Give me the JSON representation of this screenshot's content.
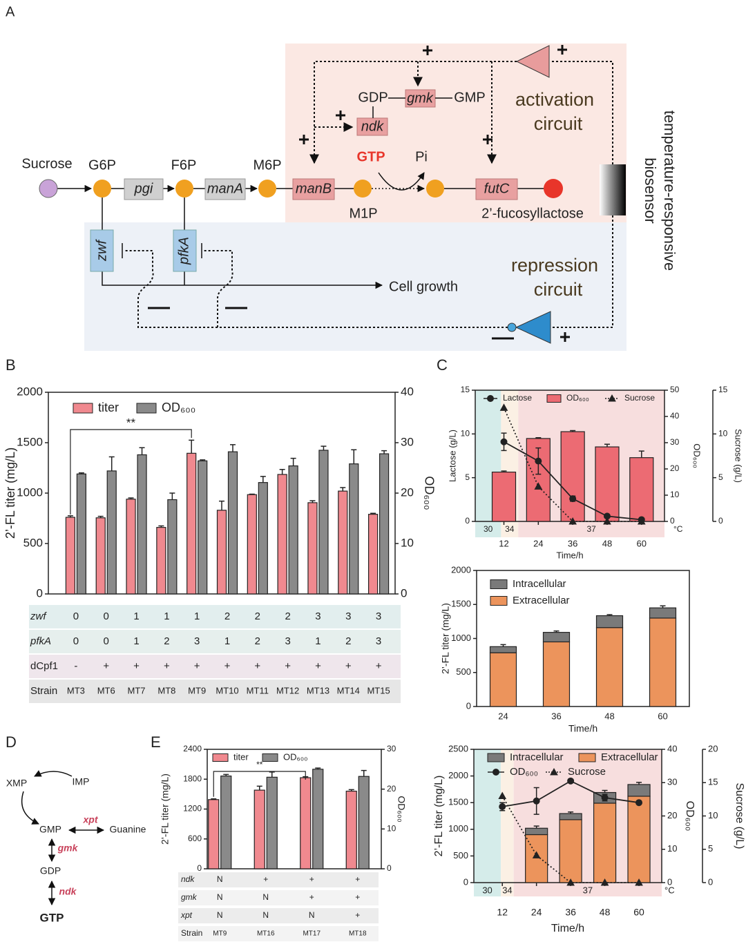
{
  "panel_labels": {
    "a": "A",
    "b": "B",
    "c": "C",
    "d": "D",
    "e": "E"
  },
  "diagram_a": {
    "sucrose": "Sucrose",
    "g6p": "G6P",
    "pgi": "pgi",
    "f6p": "F6P",
    "mana": "manA",
    "m6p": "M6P",
    "manb": "manB",
    "m1p": "M1P",
    "gdp": "GDP",
    "gmk": "gmk",
    "gmp": "GMP",
    "ndk": "ndk",
    "gtp": "GTP",
    "pi": "Pi",
    "futc": "futC",
    "product": "2’-fucosyllactose",
    "activation": [
      "activation",
      "circuit"
    ],
    "repression": [
      "repression",
      "circuit"
    ],
    "biosensor": [
      "temperature-responsive",
      "biosensor"
    ],
    "zwf": "zwf",
    "pfka": "pfkA",
    "cell_growth": "Cell growth"
  },
  "diagram_d": {
    "xmp": "XMP",
    "imp": "IMP",
    "gmp": "GMP",
    "guanine": "Guanine",
    "xpt": "xpt",
    "gmk": "gmk",
    "gdp": "GDP",
    "ndk": "ndk",
    "gtp": "GTP"
  },
  "chart_data": [
    {
      "type": "bar",
      "y_label": "2’-FL titer (mg/L)",
      "y2_label": "OD₆₀₀",
      "categories": [
        "MT3",
        "MT6",
        "MT7",
        "MT8",
        "MT9",
        "MT10",
        "MT11",
        "MT12",
        "MT13",
        "MT14",
        "MT15"
      ],
      "ylim": [
        0,
        2000
      ],
      "yticks": [
        0,
        500,
        1000,
        1500,
        2000
      ],
      "y2lim": [
        0,
        40
      ],
      "y2ticks": [
        0,
        10,
        20,
        30,
        40
      ],
      "series": [
        {
          "name": "titer",
          "color": "#f0898f",
          "values": [
            760,
            755,
            940,
            660,
            1395,
            830,
            985,
            1185,
            905,
            1020,
            790
          ],
          "errors": [
            15,
            15,
            12,
            15,
            130,
            90,
            5,
            50,
            20,
            35,
            10
          ]
        },
        {
          "name": "OD₆₀₀",
          "color": "#8a8a8a",
          "axis": "y2",
          "values": [
            23.8,
            24.4,
            27.6,
            18.7,
            26.4,
            28.2,
            22.1,
            25.4,
            28.5,
            25.8,
            27.8
          ],
          "errors": [
            0.2,
            2.8,
            1.4,
            1.3,
            0.2,
            1.4,
            1.2,
            1.5,
            0.8,
            2.8,
            0.6
          ]
        }
      ],
      "significance": "**",
      "table": {
        "rows": [
          {
            "label": "zwf",
            "cells": [
              0,
              0,
              1,
              1,
              1,
              2,
              2,
              2,
              3,
              3,
              3
            ]
          },
          {
            "label": "pfkA",
            "cells": [
              0,
              0,
              1,
              2,
              3,
              1,
              2,
              3,
              1,
              2,
              3
            ]
          },
          {
            "label": "dCpf1",
            "cells": [
              "-",
              "+",
              "+",
              "+",
              "+",
              "+",
              "+",
              "+",
              "+",
              "+",
              "+"
            ]
          },
          {
            "label": "Strain"
          }
        ]
      }
    },
    {
      "type": "combo",
      "x_label": "Time/h",
      "y_label": "Lactose (g/L)",
      "y2_label": "OD₆₀₀",
      "y3_label": "Sucrose (g/L)",
      "x": [
        12,
        24,
        36,
        48,
        60
      ],
      "xlim": [
        2,
        68
      ],
      "xticks": [
        12,
        24,
        36,
        48,
        60
      ],
      "ylim": [
        0,
        15
      ],
      "yticks": [
        0,
        5,
        10,
        15
      ],
      "y2lim": [
        0,
        50
      ],
      "y2ticks": [
        0,
        10,
        20,
        30,
        40,
        50
      ],
      "y3lim": [
        0,
        15
      ],
      "y3ticks": [
        0,
        5,
        10,
        15
      ],
      "series": [
        {
          "name": "Lactose",
          "kind": "line",
          "marker": "circle",
          "color": "#222222",
          "values": [
            9.1,
            6.9,
            2.6,
            0.6,
            0.2
          ],
          "errors": [
            1.0,
            1.5,
            0.3,
            0.1,
            0.1
          ]
        },
        {
          "name": "OD₆₀₀",
          "kind": "bar",
          "axis": "y2",
          "color": "#ec6b73",
          "values": [
            18.8,
            31.6,
            34.2,
            28.4,
            24.3
          ],
          "errors": [
            0.4,
            0.3,
            0.4,
            1.0,
            2.5
          ]
        },
        {
          "name": "Sucrose",
          "kind": "line",
          "axis": "y3",
          "marker": "triangle",
          "dashed": true,
          "color": "#222222",
          "values": [
            13,
            4,
            0,
            0,
            0
          ]
        }
      ],
      "temperature": {
        "unit": "°C",
        "bands": [
          {
            "label": "30",
            "from": 2,
            "to": 11,
            "color": "#d5ecea"
          },
          {
            "label": "34",
            "from": 11,
            "to": 17,
            "color": "#fbf0e4"
          },
          {
            "label": "37",
            "from": 17,
            "to": 68,
            "color": "#f7dede"
          }
        ]
      }
    },
    {
      "type": "bar",
      "stacked": true,
      "x_label": "Time/h",
      "y_label": "2’-FL titer (mg/L)",
      "categories": [
        24,
        36,
        48,
        60
      ],
      "ylim": [
        0,
        2000
      ],
      "yticks": [
        0,
        500,
        1000,
        1500,
        2000
      ],
      "series": [
        {
          "name": "Intracellular",
          "color": "#7a7a7a",
          "values": [
            90,
            140,
            175,
            150
          ],
          "errors": [
            30,
            20,
            15,
            30
          ]
        },
        {
          "name": "Extracellular",
          "color": "#ec945c",
          "values": [
            790,
            950,
            1160,
            1300
          ],
          "errors": [
            10,
            40,
            30,
            40
          ]
        }
      ]
    },
    {
      "type": "combo",
      "x_label": "Time/h",
      "y_label": "2’-FL titer (mg/L)",
      "y2_label": "OD₆₀₀",
      "y3_label": "Sucrose (g/L)",
      "x": [
        12,
        24,
        36,
        48,
        60
      ],
      "xlim": [
        2,
        68
      ],
      "xticks": [
        12,
        24,
        36,
        48,
        60
      ],
      "ylim": [
        0,
        2500
      ],
      "yticks": [
        0,
        500,
        1000,
        1500,
        2000,
        2500
      ],
      "y2lim": [
        0,
        40
      ],
      "y2ticks": [
        0,
        10,
        20,
        30,
        40
      ],
      "y3lim": [
        0,
        20
      ],
      "y3ticks": [
        0,
        5,
        10,
        15,
        20
      ],
      "series": [
        {
          "name": "Intracellular",
          "kind": "bar",
          "stacked": true,
          "color": "#7a7a7a",
          "values": [
            null,
            120,
            115,
            200,
            220
          ],
          "errors": [
            null,
            40,
            30,
            40,
            40
          ]
        },
        {
          "name": "Extracellular",
          "kind": "bar",
          "stacked": true,
          "color": "#ec945c",
          "values": [
            null,
            900,
            1180,
            1490,
            1620
          ],
          "errors": [
            null,
            40,
            40,
            40,
            40
          ]
        },
        {
          "name": "OD₆₀₀",
          "kind": "line",
          "axis": "y2",
          "marker": "circle",
          "color": "#222222",
          "values": [
            22.8,
            24.5,
            30.5,
            25.5,
            24
          ],
          "errors": [
            1.2,
            4,
            0.5,
            1,
            0.2
          ]
        },
        {
          "name": "Sucrose",
          "kind": "line",
          "axis": "y3",
          "marker": "triangle",
          "dashed": true,
          "color": "#222222",
          "values": [
            13,
            4.1,
            0,
            0,
            0
          ]
        }
      ],
      "temperature": {
        "unit": "°C",
        "bands": [
          {
            "label": "30",
            "from": 2,
            "to": 11.5,
            "color": "#d5ecea"
          },
          {
            "label": "34",
            "from": 11.5,
            "to": 16,
            "color": "#fbf0e4"
          },
          {
            "label": "37",
            "from": 16,
            "to": 68,
            "color": "#f7dede"
          }
        ]
      }
    },
    {
      "type": "bar",
      "y_label": "2’-FL titer (mg/L)",
      "y2_label": "OD₆₀₀",
      "categories": [
        "MT9",
        "MT16",
        "MT17",
        "MT18"
      ],
      "ylim": [
        0,
        2400
      ],
      "yticks": [
        0,
        600,
        1200,
        1800,
        2400
      ],
      "y2lim": [
        0,
        30
      ],
      "y2ticks": [
        0,
        10,
        20,
        30
      ],
      "series": [
        {
          "name": "titer",
          "color": "#f0898f",
          "values": [
            1390,
            1580,
            1830,
            1560
          ],
          "errors": [
            15,
            80,
            20,
            30
          ]
        },
        {
          "name": "OD₆₀₀",
          "color": "#8a8a8a",
          "axis": "y2",
          "values": [
            23.3,
            23,
            25,
            23.2
          ],
          "errors": [
            0.4,
            1.3,
            0.3,
            1.5
          ]
        }
      ],
      "significance": "**",
      "table": {
        "rows": [
          {
            "label": "ndk",
            "cells": [
              "N",
              "+",
              "+",
              "+"
            ]
          },
          {
            "label": "gmk",
            "cells": [
              "N",
              "N",
              "+",
              "+"
            ]
          },
          {
            "label": "xpt",
            "cells": [
              "N",
              "N",
              "N",
              "+"
            ]
          },
          {
            "label": "Strain"
          }
        ]
      }
    }
  ]
}
